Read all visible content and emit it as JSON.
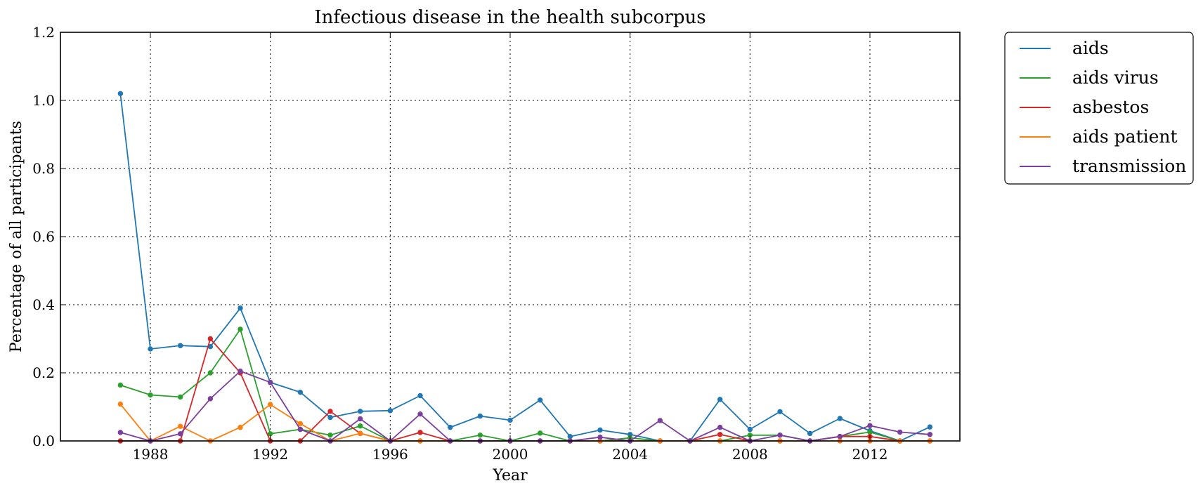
{
  "chart_data": {
    "type": "line",
    "title": "Infectious disease in the health subcorpus",
    "xlabel": "Year",
    "ylabel": "Percentage of all participants",
    "xlim": [
      1985,
      2015
    ],
    "ylim": [
      0,
      1.2
    ],
    "x_ticks": [
      1988,
      1992,
      1996,
      2000,
      2004,
      2008,
      2012
    ],
    "x_tick_labels": [
      "1988",
      "1992",
      "1996",
      "2000",
      "2004",
      "2008",
      "2012"
    ],
    "y_ticks": [
      0,
      0.2,
      0.4,
      0.6,
      0.8,
      1.0,
      1.2
    ],
    "y_tick_labels": [
      "0.0",
      "0.2",
      "0.4",
      "0.6",
      "0.8",
      "1.0",
      "1.2"
    ],
    "grid": true,
    "legend_position": "outside-top-right",
    "x": [
      1987,
      1988,
      1989,
      1990,
      1991,
      1992,
      1993,
      1994,
      1995,
      1996,
      1997,
      1998,
      1999,
      2000,
      2001,
      2002,
      2003,
      2004,
      2005,
      2006,
      2007,
      2008,
      2009,
      2010,
      2011,
      2012,
      2013,
      2014
    ],
    "series": [
      {
        "name": "aids",
        "color": "#1f77b4",
        "values": [
          1.02,
          0.27,
          0.28,
          0.277,
          0.39,
          0.172,
          0.143,
          0.069,
          0.087,
          0.089,
          0.133,
          0.04,
          0.073,
          0.061,
          0.12,
          0.013,
          0.032,
          0.019,
          0.0,
          0.0,
          0.122,
          0.034,
          0.086,
          0.022,
          0.066,
          0.03,
          0.0,
          0.041
        ]
      },
      {
        "name": "aids virus",
        "color": "#2ca02c",
        "values": [
          0.164,
          0.135,
          0.129,
          0.2,
          0.328,
          0.021,
          0.034,
          0.017,
          0.044,
          0.0,
          0.0,
          0.0,
          0.017,
          0.0,
          0.023,
          0.0,
          0.0,
          0.009,
          0.0,
          0.0,
          0.0,
          0.017,
          0.017,
          0.0,
          0.013,
          0.026,
          0.0,
          0.0
        ]
      },
      {
        "name": "asbestos",
        "color": "#d62728",
        "values": [
          0.0,
          0.0,
          0.0,
          0.3,
          0.2,
          0.0,
          0.0,
          0.087,
          0.022,
          0.0,
          0.025,
          0.0,
          0.0,
          0.0,
          0.0,
          0.0,
          0.0,
          0.0,
          0.0,
          0.0,
          0.019,
          0.0,
          0.0,
          0.0,
          0.013,
          0.013,
          0.0,
          0.0
        ]
      },
      {
        "name": "aids patient",
        "color": "#ff7f0e",
        "values": [
          0.108,
          0.0,
          0.043,
          0.0,
          0.04,
          0.107,
          0.051,
          0.0,
          0.022,
          0.0,
          0.0,
          0.0,
          0.0,
          0.0,
          0.0,
          0.0,
          0.0,
          0.0,
          0.0,
          0.0,
          0.0,
          0.0,
          0.0,
          0.0,
          0.0,
          0.0,
          0.0,
          0.0
        ]
      },
      {
        "name": "transmission",
        "color": "#7b3f9e",
        "values": [
          0.025,
          0.0,
          0.021,
          0.124,
          0.205,
          0.172,
          0.034,
          0.0,
          0.065,
          0.0,
          0.079,
          0.0,
          0.0,
          0.0,
          0.0,
          0.0,
          0.011,
          0.0,
          0.06,
          0.0,
          0.04,
          0.0,
          0.017,
          0.0,
          0.013,
          0.045,
          0.026,
          0.019
        ]
      }
    ]
  }
}
